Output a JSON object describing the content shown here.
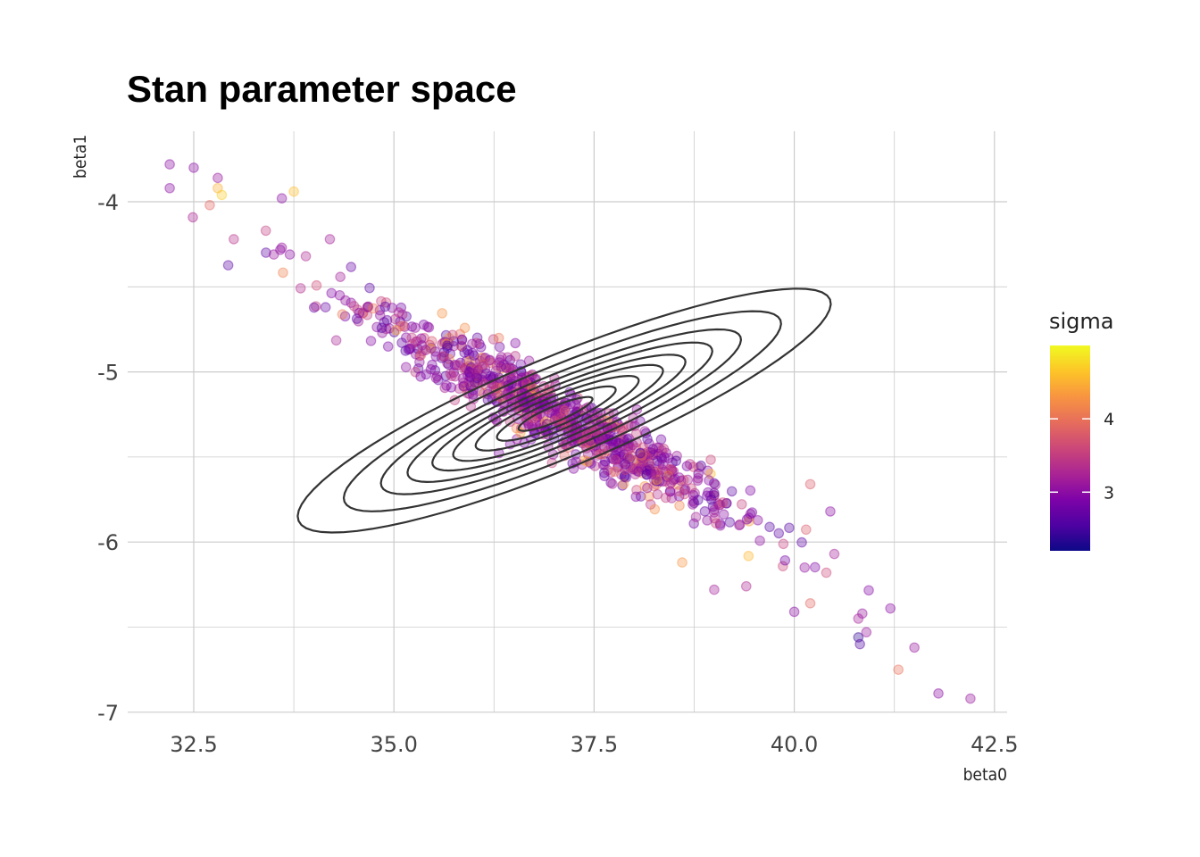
{
  "chart_data": {
    "type": "scatter",
    "title": "Stan parameter space",
    "xlabel": "beta0",
    "ylabel": "beta1",
    "xlim": [
      31.5,
      42.7
    ],
    "ylim": [
      -7.05,
      -3.6
    ],
    "x_ticks": [
      32.5,
      35.0,
      37.5,
      40.0,
      42.5
    ],
    "x_tick_labels": [
      "32.5",
      "35.0",
      "37.5",
      "40.0",
      "42.5"
    ],
    "y_ticks": [
      -4,
      -5,
      -6,
      -7
    ],
    "y_tick_labels": [
      "-4",
      "-5",
      "-6",
      "-7"
    ],
    "grid": true,
    "color_variable": "sigma",
    "color_scale": "plasma",
    "color_range": [
      2.2,
      5.0
    ],
    "legend": {
      "title": "sigma",
      "ticks": [
        3,
        4
      ],
      "tick_labels": [
        "3",
        "4"
      ],
      "placement": "right"
    },
    "point_opacity": 0.35,
    "bulk_samples": {
      "center": [
        37.0,
        -5.25
      ],
      "sd_x": 1.2,
      "sd_y": 0.32,
      "correlation": -0.95,
      "n": 900
    },
    "outlier_points": [
      {
        "x": 32.2,
        "y": -3.78,
        "sigma": 3.0
      },
      {
        "x": 32.2,
        "y": -3.92,
        "sigma": 3.0
      },
      {
        "x": 32.5,
        "y": -3.8,
        "sigma": 3.0
      },
      {
        "x": 32.8,
        "y": -3.86,
        "sigma": 3.1
      },
      {
        "x": 32.8,
        "y": -3.92,
        "sigma": 4.5
      },
      {
        "x": 32.85,
        "y": -3.96,
        "sigma": 4.7
      },
      {
        "x": 32.7,
        "y": -4.02,
        "sigma": 3.9
      },
      {
        "x": 33.0,
        "y": -4.22,
        "sigma": 3.4
      },
      {
        "x": 33.4,
        "y": -4.17,
        "sigma": 3.5
      },
      {
        "x": 33.5,
        "y": -4.31,
        "sigma": 3.1
      },
      {
        "x": 33.6,
        "y": -4.27,
        "sigma": 3.1
      },
      {
        "x": 33.7,
        "y": -4.31,
        "sigma": 3.0
      },
      {
        "x": 33.6,
        "y": -3.98,
        "sigma": 3.0
      },
      {
        "x": 33.75,
        "y": -3.94,
        "sigma": 4.6
      },
      {
        "x": 33.9,
        "y": -4.32,
        "sigma": 3.3
      },
      {
        "x": 34.2,
        "y": -4.22,
        "sigma": 3.2
      },
      {
        "x": 40.2,
        "y": -5.66,
        "sigma": 3.8
      },
      {
        "x": 40.45,
        "y": -5.82,
        "sigma": 3.0
      },
      {
        "x": 40.5,
        "y": -6.07,
        "sigma": 3.2
      },
      {
        "x": 40.4,
        "y": -6.18,
        "sigma": 3.6
      },
      {
        "x": 40.2,
        "y": -6.36,
        "sigma": 3.9
      },
      {
        "x": 40.0,
        "y": -6.41,
        "sigma": 3.0
      },
      {
        "x": 40.8,
        "y": -6.45,
        "sigma": 3.2
      },
      {
        "x": 40.85,
        "y": -6.42,
        "sigma": 3.1
      },
      {
        "x": 40.9,
        "y": -6.53,
        "sigma": 3.1
      },
      {
        "x": 40.8,
        "y": -6.56,
        "sigma": 2.4
      },
      {
        "x": 40.82,
        "y": -6.6,
        "sigma": 2.6
      },
      {
        "x": 41.2,
        "y": -6.39,
        "sigma": 3.0
      },
      {
        "x": 41.3,
        "y": -6.75,
        "sigma": 4.0
      },
      {
        "x": 41.5,
        "y": -6.62,
        "sigma": 3.1
      },
      {
        "x": 41.8,
        "y": -6.89,
        "sigma": 3.0
      },
      {
        "x": 42.2,
        "y": -6.92,
        "sigma": 3.1
      },
      {
        "x": 38.6,
        "y": -6.12,
        "sigma": 4.3
      },
      {
        "x": 39.0,
        "y": -6.28,
        "sigma": 3.2
      },
      {
        "x": 39.4,
        "y": -6.26,
        "sigma": 3.3
      }
    ],
    "density_contours": {
      "center": [
        37.0,
        -5.25
      ],
      "levels": [
        0.12,
        0.24,
        0.38,
        0.5,
        0.62,
        0.72,
        0.82,
        0.9,
        0.96
      ],
      "color": "#333333"
    }
  }
}
